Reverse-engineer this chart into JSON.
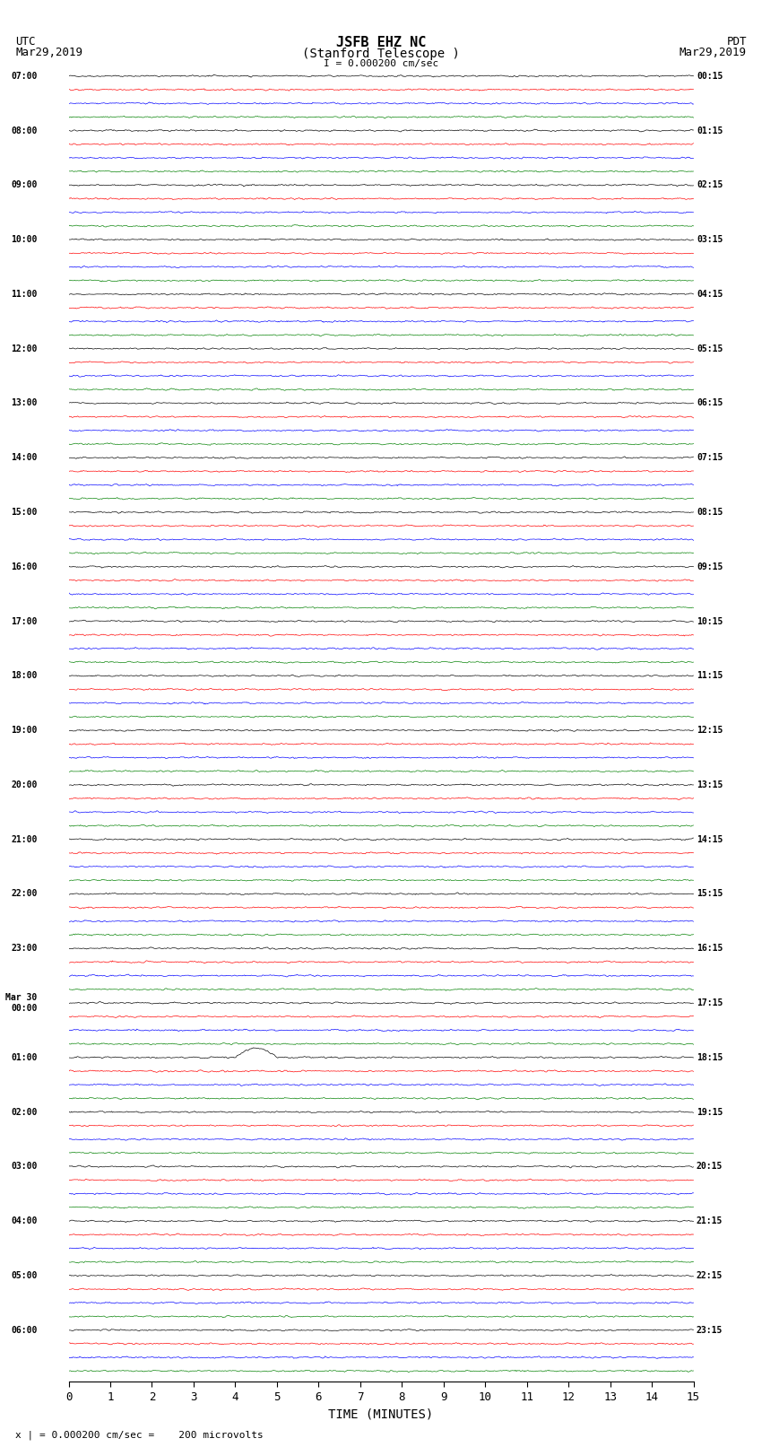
{
  "title_line1": "JSFB EHZ NC",
  "title_line2": "(Stanford Telescope )",
  "scale_label": "I = 0.000200 cm/sec",
  "footer_label": "x | = 0.000200 cm/sec =    200 microvolts",
  "utc_label": "UTC\nMar29,2019",
  "pdt_label": "PDT\nMar29,2019",
  "xlabel": "TIME (MINUTES)",
  "left_times_utc": [
    "07:00",
    "",
    "",
    "",
    "08:00",
    "",
    "",
    "",
    "09:00",
    "",
    "",
    "",
    "10:00",
    "",
    "",
    "",
    "11:00",
    "",
    "",
    "",
    "12:00",
    "",
    "",
    "",
    "13:00",
    "",
    "",
    "",
    "14:00",
    "",
    "",
    "",
    "15:00",
    "",
    "",
    "",
    "16:00",
    "",
    "",
    "",
    "17:00",
    "",
    "",
    "",
    "18:00",
    "",
    "",
    "",
    "19:00",
    "",
    "",
    "",
    "20:00",
    "",
    "",
    "",
    "21:00",
    "",
    "",
    "",
    "22:00",
    "",
    "",
    "",
    "23:00",
    "",
    "",
    "",
    "Mar 30\n00:00",
    "",
    "",
    "",
    "01:00",
    "",
    "",
    "",
    "02:00",
    "",
    "",
    "",
    "03:00",
    "",
    "",
    "",
    "04:00",
    "",
    "",
    "",
    "05:00",
    "",
    "",
    "",
    "06:00",
    "",
    "",
    ""
  ],
  "right_times_pdt": [
    "00:15",
    "",
    "",
    "",
    "01:15",
    "",
    "",
    "",
    "02:15",
    "",
    "",
    "",
    "03:15",
    "",
    "",
    "",
    "04:15",
    "",
    "",
    "",
    "05:15",
    "",
    "",
    "",
    "06:15",
    "",
    "",
    "",
    "07:15",
    "",
    "",
    "",
    "08:15",
    "",
    "",
    "",
    "09:15",
    "",
    "",
    "",
    "10:15",
    "",
    "",
    "",
    "11:15",
    "",
    "",
    "",
    "12:15",
    "",
    "",
    "",
    "13:15",
    "",
    "",
    "",
    "14:15",
    "",
    "",
    "",
    "15:15",
    "",
    "",
    "",
    "16:15",
    "",
    "",
    "",
    "17:15",
    "",
    "",
    "",
    "18:15",
    "",
    "",
    "",
    "19:15",
    "",
    "",
    "",
    "20:15",
    "",
    "",
    "",
    "21:15",
    "",
    "",
    "",
    "22:15",
    "",
    "",
    "",
    "23:15",
    "",
    "",
    ""
  ],
  "colors": [
    "black",
    "red",
    "blue",
    "green"
  ],
  "n_rows": 96,
  "n_traces_per_hour": 4,
  "n_hours": 24,
  "x_min": 0,
  "x_max": 15,
  "x_ticks": [
    0,
    1,
    2,
    3,
    4,
    5,
    6,
    7,
    8,
    9,
    10,
    11,
    12,
    13,
    14,
    15
  ],
  "bg_color": "white",
  "trace_amplitude": 0.35,
  "special_row": 72,
  "special_amplitude": 2.0,
  "noise_seed": 42
}
